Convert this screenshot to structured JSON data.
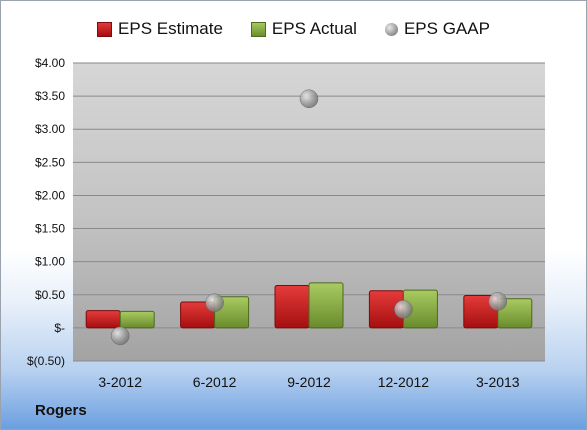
{
  "legend": {
    "estimate_label": "EPS Estimate",
    "actual_label": "EPS Actual",
    "gaap_label": "EPS GAAP"
  },
  "company": "Rogers",
  "colors": {
    "estimate": "#c0171a",
    "actual": "#86a83f",
    "gaap": "#9e9e9e"
  },
  "chart_data": {
    "type": "bar",
    "categories": [
      "3-2012",
      "6-2012",
      "9-2012",
      "12-2012",
      "3-2013"
    ],
    "series": [
      {
        "name": "EPS Estimate",
        "type": "bar",
        "values": [
          0.26,
          0.39,
          0.64,
          0.56,
          0.49
        ]
      },
      {
        "name": "EPS Actual",
        "type": "bar",
        "values": [
          0.25,
          0.47,
          0.68,
          0.57,
          0.44
        ]
      },
      {
        "name": "EPS GAAP",
        "type": "scatter",
        "values": [
          -0.12,
          0.38,
          3.46,
          0.28,
          0.4
        ]
      }
    ],
    "ylim": [
      -0.5,
      4.0
    ],
    "yticks": [
      -0.5,
      0,
      0.5,
      1.0,
      1.5,
      2.0,
      2.5,
      3.0,
      3.5,
      4.0
    ],
    "ytick_labels": [
      "$(0.50)",
      "$-",
      "$0.50",
      "$1.00",
      "$1.50",
      "$2.00",
      "$2.50",
      "$3.00",
      "$3.50",
      "$4.00"
    ],
    "grid": true,
    "legend_position": "top"
  }
}
